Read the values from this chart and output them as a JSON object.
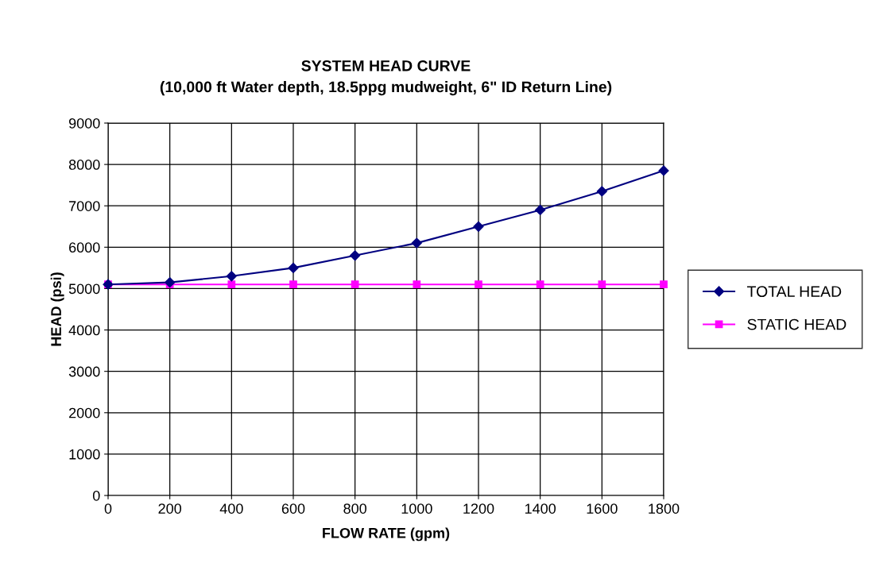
{
  "chart_data": {
    "type": "line",
    "title": "SYSTEM HEAD CURVE\n(10,000 ft Water depth, 18.5ppg mudweight, 6\" ID Return Line)",
    "xlabel": "FLOW RATE (gpm)",
    "ylabel": "HEAD (psi)",
    "x": [
      0,
      200,
      400,
      600,
      800,
      1000,
      1200,
      1400,
      1600,
      1800
    ],
    "series": [
      {
        "name": "TOTAL HEAD",
        "color": "#000080",
        "marker": "diamond",
        "values": [
          5100,
          5150,
          5300,
          5500,
          5800,
          6100,
          6500,
          6900,
          7350,
          7850
        ]
      },
      {
        "name": "STATIC HEAD",
        "color": "#ff00ff",
        "marker": "square",
        "values": [
          5100,
          5100,
          5100,
          5100,
          5100,
          5100,
          5100,
          5100,
          5100,
          5100
        ]
      }
    ],
    "xlim": [
      0,
      1800
    ],
    "xticks": [
      0,
      200,
      400,
      600,
      800,
      1000,
      1200,
      1400,
      1600,
      1800
    ],
    "ylim": [
      0,
      9000
    ],
    "yticks": [
      0,
      1000,
      2000,
      3000,
      4000,
      5000,
      6000,
      7000,
      8000,
      9000
    ],
    "grid": true,
    "legend": "right",
    "line_style": "solid"
  }
}
